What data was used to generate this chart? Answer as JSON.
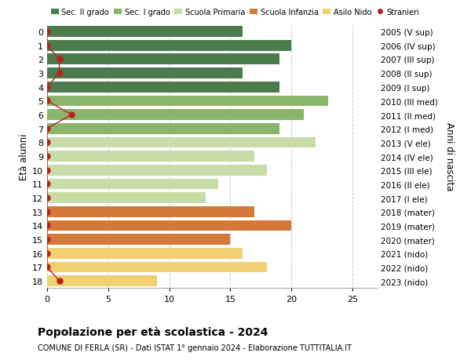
{
  "ages": [
    18,
    17,
    16,
    15,
    14,
    13,
    12,
    11,
    10,
    9,
    8,
    7,
    6,
    5,
    4,
    3,
    2,
    1,
    0
  ],
  "right_labels": [
    "2005 (V sup)",
    "2006 (IV sup)",
    "2007 (III sup)",
    "2008 (II sup)",
    "2009 (I sup)",
    "2010 (III med)",
    "2011 (II med)",
    "2012 (I med)",
    "2013 (V ele)",
    "2014 (IV ele)",
    "2015 (III ele)",
    "2016 (II ele)",
    "2017 (I ele)",
    "2018 (mater)",
    "2019 (mater)",
    "2020 (mater)",
    "2021 (nido)",
    "2022 (nido)",
    "2023 (nido)"
  ],
  "bar_values": [
    16,
    20,
    19,
    16,
    19,
    23,
    21,
    19,
    22,
    17,
    18,
    14,
    13,
    17,
    20,
    15,
    16,
    18,
    9
  ],
  "bar_colors": [
    "#4a7c4e",
    "#4a7c4e",
    "#4a7c4e",
    "#4a7c4e",
    "#4a7c4e",
    "#8ab56a",
    "#8ab56a",
    "#8ab56a",
    "#c8dca8",
    "#c8dca8",
    "#c8dca8",
    "#c8dca8",
    "#c8dca8",
    "#d4793a",
    "#d4793a",
    "#d4793a",
    "#f0d070",
    "#f0d070",
    "#f0d070"
  ],
  "stranieri_values": [
    0,
    0,
    1,
    1,
    0,
    0,
    2,
    0,
    0,
    0,
    0,
    0,
    0,
    0,
    0,
    0,
    0,
    0,
    1
  ],
  "legend_labels": [
    "Sec. II grado",
    "Sec. I grado",
    "Scuola Primaria",
    "Scuola Infanzia",
    "Asilo Nido",
    "Stranieri"
  ],
  "legend_colors": [
    "#4a7c4e",
    "#8ab56a",
    "#c8dca8",
    "#d4793a",
    "#f0d070",
    "#bb2020"
  ],
  "title": "Popolazione per età scolastica - 2024",
  "subtitle": "COMUNE DI FERLA (SR) - Dati ISTAT 1° gennaio 2024 - Elaborazione TUTTITALIA.IT",
  "ylabel_left": "Età alunni",
  "ylabel_right": "Anni di nascita",
  "xlim": [
    0,
    27
  ],
  "xticks": [
    0,
    5,
    10,
    15,
    20,
    25
  ],
  "background_color": "#ffffff",
  "grid_color": "#cccccc"
}
